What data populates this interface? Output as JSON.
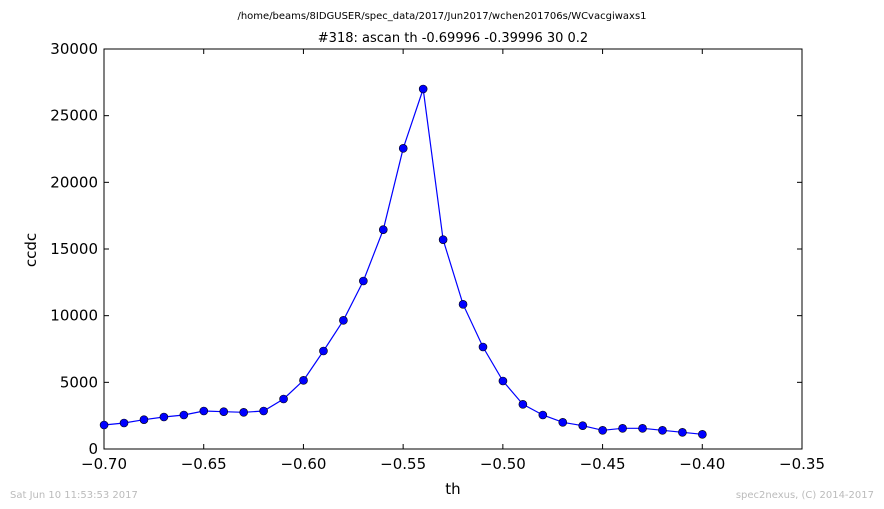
{
  "header": {
    "suptitle": "/home/beams/8IDGUSER/spec_data/2017/Jun2017/wchen201706s/WCvacgiwaxs1"
  },
  "footer": {
    "timestamp": "Sat Jun 10 11:53:53 2017",
    "credit": "spec2nexus, (C) 2014-2017"
  },
  "chart_data": {
    "type": "line",
    "title": "#318: ascan  th -0.69996 -0.39996  30 0.2",
    "xlabel": "th",
    "ylabel": "ccdc",
    "xlim": [
      -0.7,
      -0.35
    ],
    "ylim": [
      0,
      30000
    ],
    "xticks": [
      -0.7,
      -0.65,
      -0.6,
      -0.55,
      -0.5,
      -0.45,
      -0.4,
      -0.35
    ],
    "xtick_labels": [
      "−0.70",
      "−0.65",
      "−0.60",
      "−0.55",
      "−0.50",
      "−0.45",
      "−0.40",
      "−0.35"
    ],
    "yticks": [
      0,
      5000,
      10000,
      15000,
      20000,
      25000,
      30000
    ],
    "ytick_labels": [
      "0",
      "5000",
      "10000",
      "15000",
      "20000",
      "25000",
      "30000"
    ],
    "grid": false,
    "series": [
      {
        "color": "#0000ff",
        "marker": "circle",
        "x": [
          -0.69996,
          -0.68996,
          -0.67996,
          -0.66996,
          -0.65996,
          -0.64996,
          -0.63996,
          -0.62996,
          -0.61996,
          -0.60996,
          -0.59996,
          -0.58996,
          -0.57996,
          -0.56996,
          -0.55996,
          -0.54996,
          -0.53996,
          -0.52996,
          -0.51996,
          -0.50996,
          -0.49996,
          -0.48996,
          -0.47996,
          -0.46996,
          -0.45996,
          -0.44996,
          -0.43996,
          -0.42996,
          -0.41996,
          -0.40996,
          -0.39996
        ],
        "y": [
          1800,
          1950,
          2200,
          2400,
          2550,
          2850,
          2800,
          2750,
          2850,
          3750,
          5150,
          7350,
          9650,
          12600,
          16450,
          22550,
          27000,
          15700,
          10850,
          7650,
          5100,
          3350,
          2550,
          2000,
          1750,
          1400,
          1550,
          1550,
          1400,
          1250,
          1100
        ]
      }
    ]
  }
}
